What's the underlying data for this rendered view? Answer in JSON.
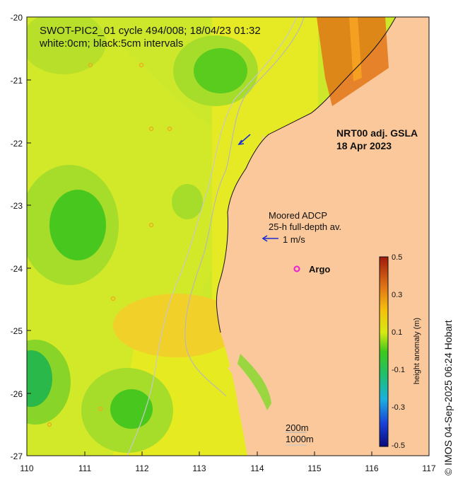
{
  "title": "SWOT-PIC2_01 cycle 494/008; 18/04/23 01:32",
  "subtitle": "white:0cm; black:5cm intervals",
  "y_ticks": [
    "-20",
    "-21",
    "-22",
    "-23",
    "-24",
    "-25",
    "-26",
    "-27"
  ],
  "x_ticks": [
    "110",
    "111",
    "112",
    "113",
    "114",
    "115",
    "116",
    "117"
  ],
  "product_label": "NRT00 adj. GSLA",
  "product_date": "18 Apr 2023",
  "adcp_label_1": "Moored ADCP",
  "adcp_label_2": "25-h full-depth av.",
  "velocity_scale": "1 m/s",
  "argo_label": "Argo",
  "isobath_200": "200m",
  "isobath_1000": "1000m",
  "colorbar": {
    "label": "height anomaly (m)",
    "ticks": [
      "0.5",
      "0.3",
      "0.1",
      "-0.1",
      "-0.3",
      "-0.5"
    ]
  },
  "credit": "© IMOS 04-Sep-2025 06:24 Hobart",
  "colors": {
    "land": "#fac89a",
    "ocean_base": "#cde82a",
    "high": "#a11a0b",
    "low": "#0a0a7a",
    "argo_marker": "#e81fd6",
    "adcp_arrow": "#1c2fd0"
  }
}
